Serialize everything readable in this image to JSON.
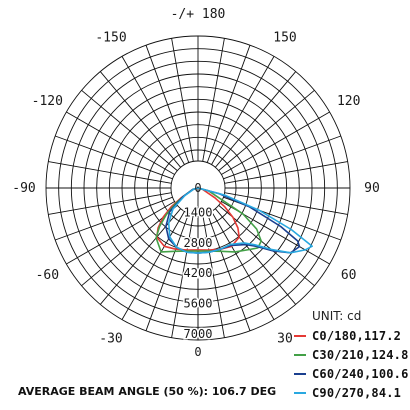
{
  "chart_data": {
    "type": "polar",
    "unit_label": "UNIT: cd",
    "radial_max": 7000,
    "radial_ticks": [
      "0",
      "1400",
      "2800",
      "4200",
      "5600",
      "7000"
    ],
    "radial_values": [
      0,
      1400,
      2800,
      4200,
      5600,
      7000
    ],
    "angle_labels": [
      {
        "angle": 180,
        "text": "-/+ 180"
      },
      {
        "angle": 150,
        "text": "150"
      },
      {
        "angle": 120,
        "text": "120"
      },
      {
        "angle": 90,
        "text": "90"
      },
      {
        "angle": 60,
        "text": "60"
      },
      {
        "angle": 30,
        "text": "30"
      },
      {
        "angle": 0,
        "text": "0"
      },
      {
        "angle": -30,
        "text": "-30"
      },
      {
        "angle": -60,
        "text": "-60"
      },
      {
        "angle": -90,
        "text": "-90"
      },
      {
        "angle": -120,
        "text": "-120"
      },
      {
        "angle": -150,
        "text": "-150"
      }
    ],
    "series": [
      {
        "name": "C0/180,117.2",
        "color": "#e53935",
        "angles": [
          -90,
          -75,
          -60,
          -55,
          -50,
          -45,
          -40,
          -30,
          -20,
          -10,
          0,
          10,
          20,
          30,
          40,
          45,
          50,
          55,
          60,
          75,
          90
        ],
        "values": [
          0,
          200,
          900,
          1500,
          2100,
          2600,
          2950,
          3100,
          3000,
          2900,
          2850,
          2900,
          3000,
          3100,
          2950,
          2600,
          2100,
          1500,
          900,
          200,
          0
        ]
      },
      {
        "name": "C30/210,124.8",
        "color": "#43a047",
        "angles": [
          -90,
          -75,
          -60,
          -55,
          -50,
          -45,
          -40,
          -30,
          -20,
          -10,
          0,
          10,
          20,
          30,
          40,
          45,
          50,
          55,
          60,
          75,
          90
        ],
        "values": [
          0,
          250,
          800,
          1300,
          1900,
          2500,
          3000,
          3400,
          3100,
          2950,
          2900,
          2950,
          3100,
          3400,
          3700,
          3900,
          3800,
          3300,
          2400,
          500,
          0
        ]
      },
      {
        "name": "C60/240,100.6",
        "color": "#1a3f8f",
        "angles": [
          -90,
          -75,
          -60,
          -50,
          -40,
          -30,
          -20,
          -10,
          0,
          10,
          20,
          30,
          40,
          45,
          50,
          55,
          60,
          62,
          65,
          70,
          75,
          90
        ],
        "values": [
          0,
          250,
          800,
          1700,
          2300,
          2700,
          2900,
          3000,
          3000,
          3000,
          3000,
          3050,
          3400,
          3800,
          4500,
          5200,
          5400,
          5200,
          4200,
          2500,
          1000,
          0
        ]
      },
      {
        "name": "C90/270,84.1",
        "color": "#29a8e0",
        "angles": [
          -90,
          -75,
          -60,
          -50,
          -40,
          -30,
          -20,
          -10,
          0,
          10,
          20,
          30,
          40,
          45,
          50,
          55,
          60,
          63,
          66,
          70,
          75,
          90
        ],
        "values": [
          0,
          200,
          700,
          1500,
          2100,
          2600,
          2900,
          3000,
          3000,
          3000,
          3000,
          3000,
          3300,
          3700,
          4400,
          5200,
          5700,
          5900,
          4700,
          3000,
          1300,
          0
        ]
      }
    ]
  },
  "footer": {
    "beam_angle": "AVERAGE BEAM ANGLE (50 %): 106.7 DEG"
  }
}
